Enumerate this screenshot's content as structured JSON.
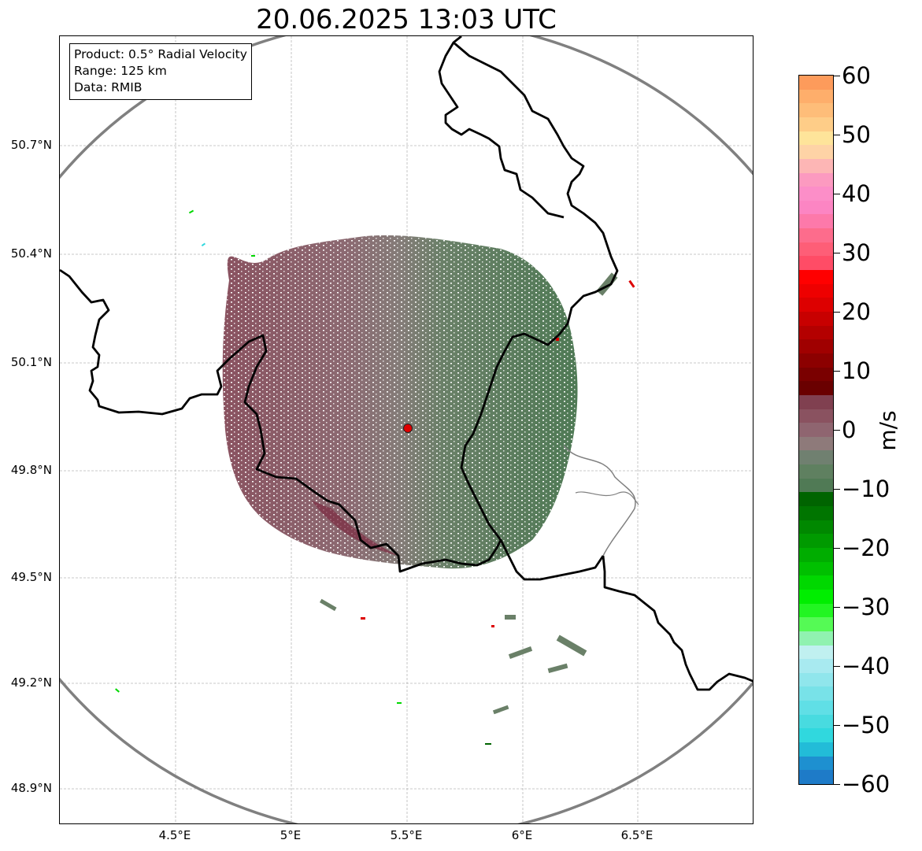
{
  "title": "20.06.2025 13:03 UTC",
  "info_box": {
    "line1": "Product: 0.5° Radial Velocity",
    "line2": "Range: 125 km",
    "line3": "Data: RMIB"
  },
  "lat_ticks": [
    "50.7°N",
    "50.4°N",
    "50.1°N",
    "49.8°N",
    "49.5°N",
    "49.2°N",
    "48.9°N"
  ],
  "lon_ticks": [
    "4.5°E",
    "5°E",
    "5.5°E",
    "6°E",
    "6.5°E"
  ],
  "colorbar": {
    "unit": "m/s",
    "tick_labels": [
      "60",
      "50",
      "40",
      "30",
      "20",
      "10",
      "0",
      "−10",
      "−20",
      "−30",
      "−40",
      "−50",
      "−60"
    ],
    "colors_top_to_bottom": [
      "#fd9b5b",
      "#feae6b",
      "#febd79",
      "#fecd88",
      "#fee49a",
      "#fed3a6",
      "#fdb6b5",
      "#fc9ac0",
      "#fc8ec8",
      "#fc85c3",
      "#fd79aa",
      "#fd6c8c",
      "#fe5e77",
      "#ff4c66",
      "#ff0000",
      "#ee0000",
      "#dd0000",
      "#c80000",
      "#b40000",
      "#a00000",
      "#8c0000",
      "#7a0000",
      "#6a0000",
      "#804050",
      "#8a5260",
      "#8f6570",
      "#8e7a7a",
      "#708070",
      "#5f8060",
      "#507a55",
      "#006400",
      "#007500",
      "#008800",
      "#009a00",
      "#00ad00",
      "#00c000",
      "#00d800",
      "#00ee00",
      "#22f522",
      "#55fa55",
      "#90f2b0",
      "#c0f0f0",
      "#a8eaf0",
      "#90e6ec",
      "#78e2e8",
      "#60dfe6",
      "#48dbe0",
      "#30d8de",
      "#22bcd8",
      "#1e90d0",
      "#1e7bc8"
    ]
  },
  "radar_site_marker": "red-circle",
  "colors": {
    "approaching": "#5f8060",
    "receding": "#8a5260",
    "range_ring": "#808080",
    "border_national": "#000000",
    "border_regional": "#808080"
  }
}
